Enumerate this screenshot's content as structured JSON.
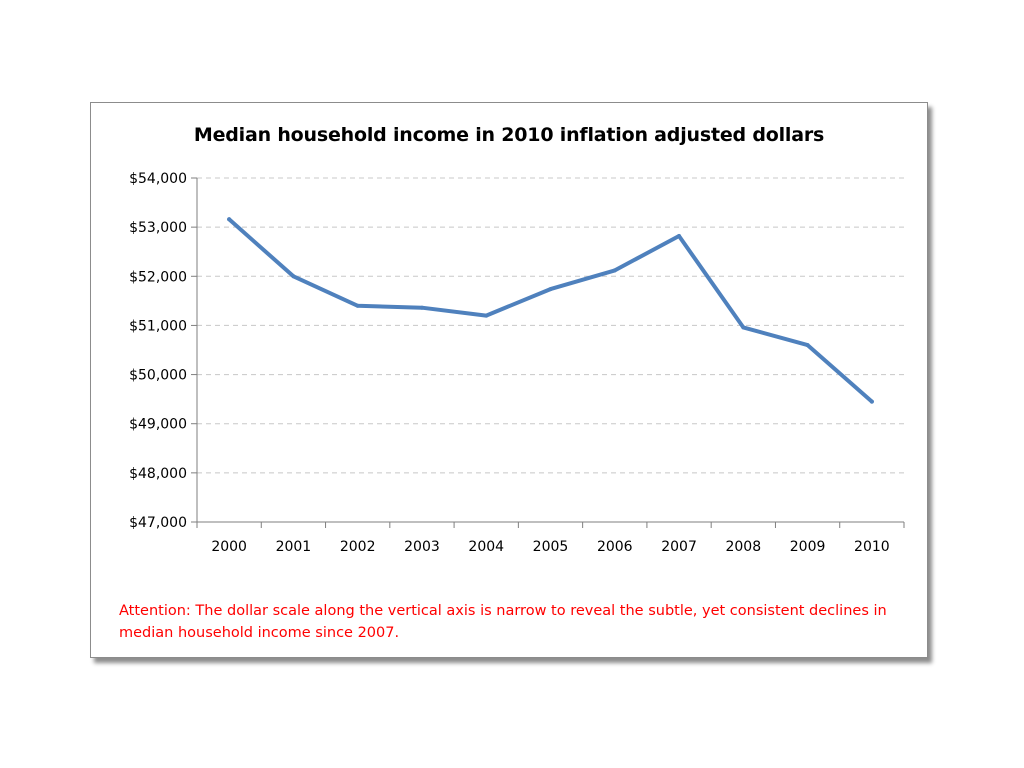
{
  "chart_data": {
    "type": "line",
    "title": "Median household income in 2010 inflation adjusted dollars",
    "xlabel": "",
    "ylabel": "",
    "categories": [
      "2000",
      "2001",
      "2002",
      "2003",
      "2004",
      "2005",
      "2006",
      "2007",
      "2008",
      "2009",
      "2010"
    ],
    "series": [
      {
        "values": [
          53160,
          52000,
          51400,
          51360,
          51200,
          51740,
          52120,
          52820,
          50960,
          50600,
          49450
        ],
        "color": "#4f81bd"
      }
    ],
    "ylim": [
      47000,
      54000
    ],
    "y_ticks": [
      47000,
      48000,
      49000,
      50000,
      51000,
      52000,
      53000,
      54000
    ],
    "y_tick_labels": [
      "$47,000",
      "$48,000",
      "$49,000",
      "$50,000",
      "$51,000",
      "$52,000",
      "$53,000",
      "$54,000"
    ],
    "grid": "horizontal dashed",
    "legend": "none",
    "annotation": "Attention: The dollar scale along the vertical axis is narrow to reveal the subtle, yet consistent declines in median household income since 2007."
  }
}
